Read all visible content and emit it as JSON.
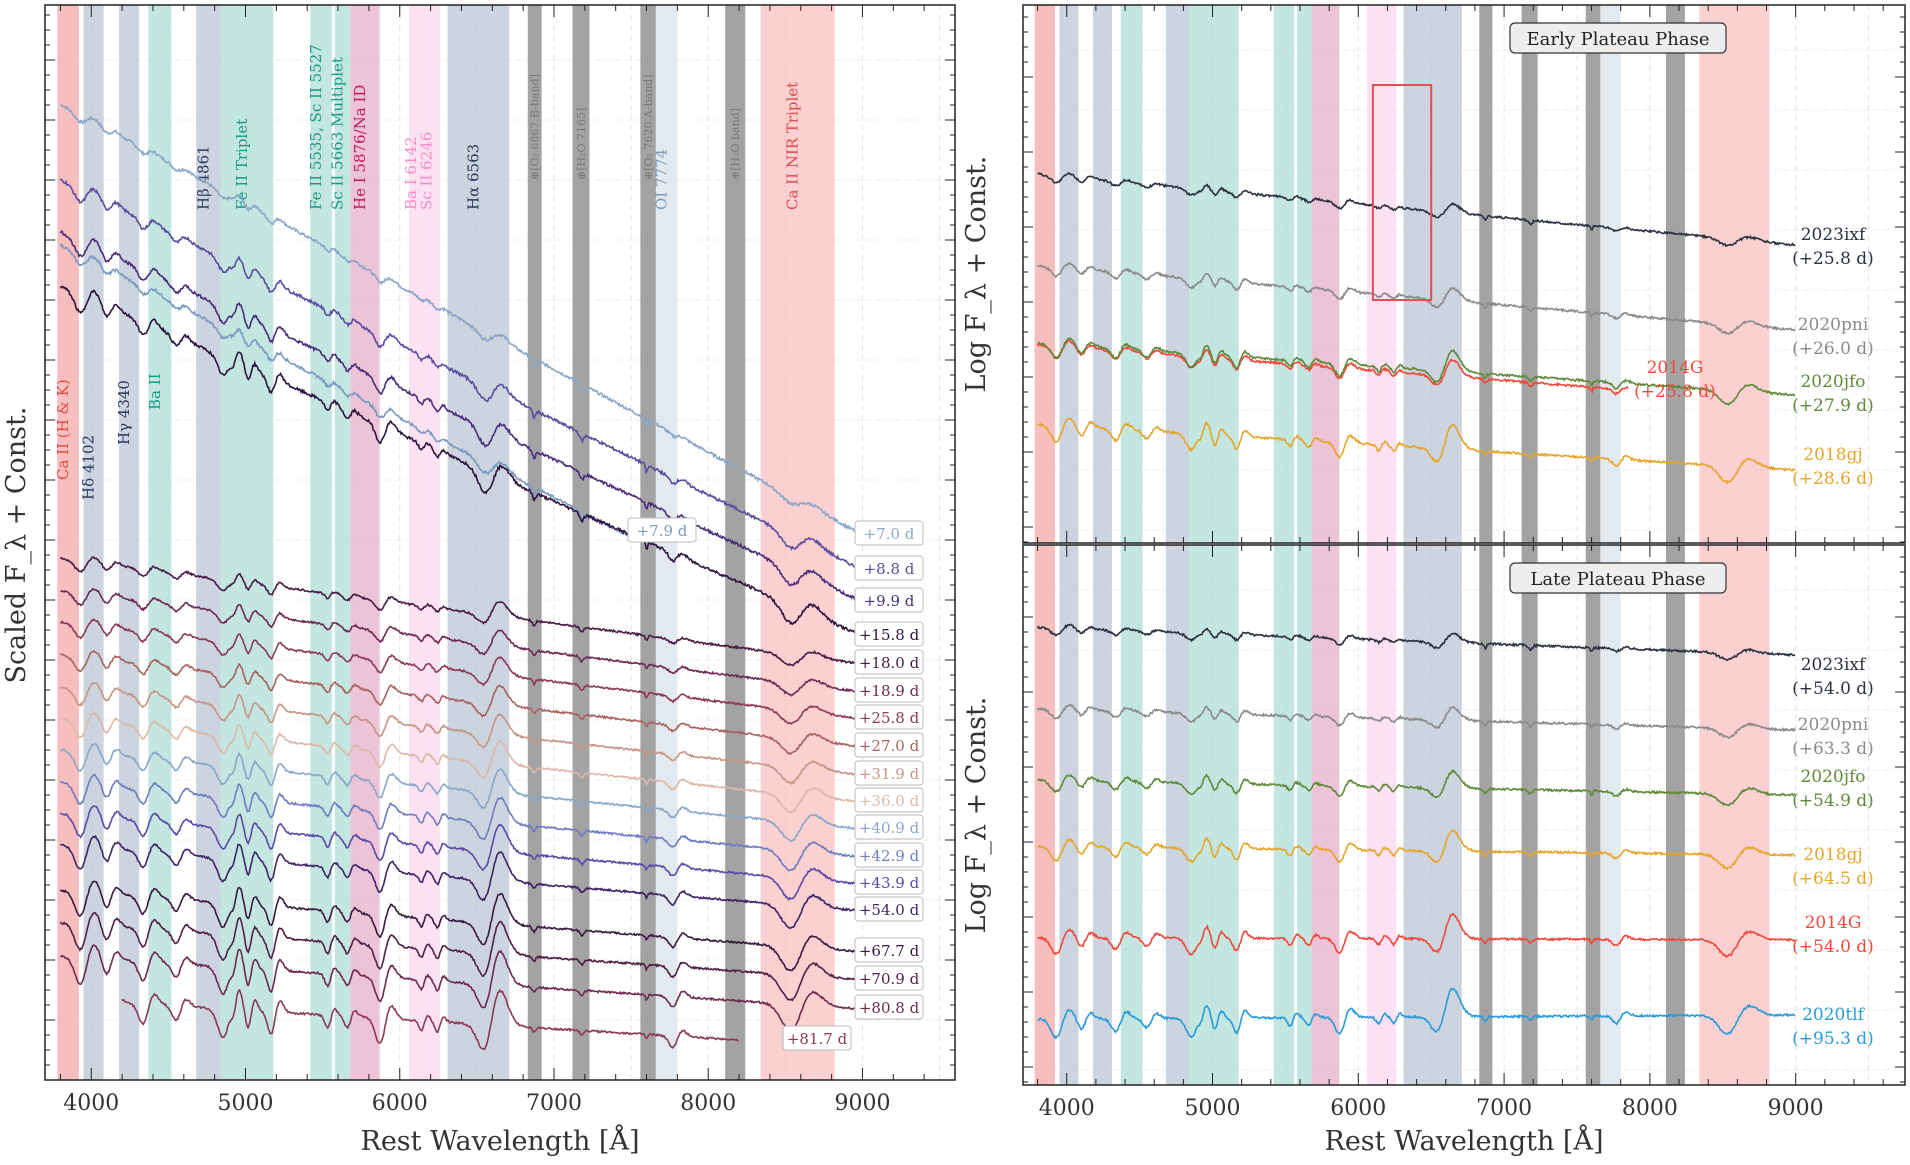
{
  "chart_data": [
    {
      "type": "line",
      "panel": "left",
      "title": "",
      "xlabel": "Rest Wavelength [Å]",
      "ylabel": "Scaled F_λ + Const.",
      "xlim": [
        3700,
        9600
      ],
      "xticks": [
        4000,
        5000,
        6000,
        7000,
        8000,
        9000
      ],
      "xtick_labels": [
        "4000",
        "5000",
        "6000",
        "7000",
        "8000",
        "9000"
      ],
      "grid": true,
      "line_bands": [
        {
          "label": "Ca II (H & K)",
          "range": [
            3780,
            3920
          ],
          "color": "#f4a3a3",
          "label_color": "#e04a4a"
        },
        {
          "label": "Hδ 4102",
          "range": [
            3950,
            4080
          ],
          "color": "#b6c2d1",
          "label_color": "#2a3a5c"
        },
        {
          "label": "Hγ 4340",
          "range": [
            4180,
            4310
          ],
          "color": "#b6c2d1",
          "label_color": "#2a3a5c"
        },
        {
          "label": "Ba II",
          "range": [
            4370,
            4520
          ],
          "color": "#a9dbd4",
          "label_color": "#1a9a85"
        },
        {
          "label": "Hβ 4861",
          "range": [
            4680,
            4840
          ],
          "color": "#b6c2d1",
          "label_color": "#2a3a5c"
        },
        {
          "label": "Fe II Triplet",
          "range": [
            4840,
            5180
          ],
          "color": "#a9dbd4",
          "label_color": "#1a9a85"
        },
        {
          "label": "Fe II 5535, Sc II 5527",
          "range": [
            5420,
            5560
          ],
          "color": "#a9dbd4",
          "label_color": "#1a9a85"
        },
        {
          "label": "Sc II 5663 Multiplet",
          "range": [
            5580,
            5680
          ],
          "color": "#a9dbd4",
          "label_color": "#1a9a85"
        },
        {
          "label": "He I 5876/Na ID",
          "range": [
            5680,
            5870
          ],
          "color": "#e6a9c6",
          "label_color": "#c2185b"
        },
        {
          "label": "Ba I 6142",
          "range": [
            6060,
            6150
          ],
          "color": "#fbd4ec",
          "label_color": "#ef8fc9"
        },
        {
          "label": "Sc II 6246",
          "range": [
            6150,
            6260
          ],
          "color": "#fbd4ec",
          "label_color": "#ef8fc9"
        },
        {
          "label": "Hα 6563",
          "range": [
            6310,
            6710
          ],
          "color": "#b6c2d1",
          "label_color": "#2a3a5c"
        },
        {
          "label": "OI 7774",
          "range": [
            7660,
            7800
          ],
          "color": "#d6dfe8",
          "label_color": "#7e9ab5"
        },
        {
          "label": "Ca II NIR Triplet",
          "range": [
            8340,
            8820
          ],
          "color": "#f9bcbc",
          "label_color": "#e04a4a"
        }
      ],
      "telluric_bands": [
        {
          "label": "⊕[O₂ 6867 B-band]",
          "range": [
            6830,
            6920
          ]
        },
        {
          "label": "⊕[H₂O 7165]",
          "range": [
            7120,
            7230
          ]
        },
        {
          "label": "⊕[O₂ 7620 A-band]",
          "range": [
            7560,
            7660
          ]
        },
        {
          "label": "⊕[H₂O band]",
          "range": [
            8110,
            8240
          ]
        }
      ],
      "series": [
        {
          "name": "+7.0 d",
          "color": "#8aa6c8"
        },
        {
          "name": "+7.9 d",
          "color": "#7b9bc0"
        },
        {
          "name": "+8.8 d",
          "color": "#5b4da0"
        },
        {
          "name": "+9.9 d",
          "color": "#4a2e7a"
        },
        {
          "name": "+15.8 d",
          "color": "#2d1540"
        },
        {
          "name": "+18.0 d",
          "color": "#4a1b45"
        },
        {
          "name": "+18.9 d",
          "color": "#6d2a52"
        },
        {
          "name": "+25.8 d",
          "color": "#8c3a58"
        },
        {
          "name": "+27.0 d",
          "color": "#a7635f"
        },
        {
          "name": "+31.9 d",
          "color": "#c79585"
        },
        {
          "name": "+36.0 d",
          "color": "#dbb9a8"
        },
        {
          "name": "+40.9 d",
          "color": "#8aa6c8"
        },
        {
          "name": "+42.9 d",
          "color": "#6f7dbf"
        },
        {
          "name": "+43.9 d",
          "color": "#5a4aa8"
        },
        {
          "name": "+54.0 d",
          "color": "#3d2566"
        },
        {
          "name": "+67.7 d",
          "color": "#3a1a3f"
        },
        {
          "name": "+70.9 d",
          "color": "#521f47"
        },
        {
          "name": "+80.8 d",
          "color": "#6e2a4e"
        },
        {
          "name": "+81.7 d",
          "color": "#8a3a55"
        }
      ]
    },
    {
      "type": "line",
      "panel": "top-right",
      "title": "Early Plateau Phase",
      "xlabel": "",
      "ylabel": "Log F_λ + Const.",
      "xlim": [
        3700,
        9750
      ],
      "grid": true,
      "series": [
        {
          "name": "2023ixf",
          "phase": "(+25.8 d)",
          "color": "#2b3240"
        },
        {
          "name": "2020pni",
          "phase": "(+26.0 d)",
          "color": "#8a8a8a"
        },
        {
          "name": "2014G",
          "phase": "(+25.8 d)",
          "color": "#f0483a"
        },
        {
          "name": "2020jfo",
          "phase": "(+27.9 d)",
          "color": "#5f8a3a"
        },
        {
          "name": "2018gj",
          "phase": "(+28.6 d)",
          "color": "#e6a52a"
        }
      ],
      "highlight_box": {
        "x_range": [
          6100,
          6500
        ]
      }
    },
    {
      "type": "line",
      "panel": "bottom-right",
      "title": "Late Plateau Phase",
      "xlabel": "Rest Wavelength [Å]",
      "ylabel": "Log F_λ + Const.",
      "xlim": [
        3700,
        9750
      ],
      "xticks": [
        4000,
        5000,
        6000,
        7000,
        8000,
        9000
      ],
      "xtick_labels": [
        "4000",
        "5000",
        "6000",
        "7000",
        "8000",
        "9000"
      ],
      "grid": true,
      "series": [
        {
          "name": "2023ixf",
          "phase": "(+54.0 d)",
          "color": "#2b3240"
        },
        {
          "name": "2020pni",
          "phase": "(+63.3 d)",
          "color": "#8a8a8a"
        },
        {
          "name": "2020jfo",
          "phase": "(+54.9 d)",
          "color": "#5f8a3a"
        },
        {
          "name": "2018gj",
          "phase": "(+64.5 d)",
          "color": "#e6a52a"
        },
        {
          "name": "2014G",
          "phase": "(+54.0 d)",
          "color": "#f0483a"
        },
        {
          "name": "2020tlf",
          "phase": "(+95.3 d)",
          "color": "#2a9bd8"
        }
      ]
    }
  ]
}
